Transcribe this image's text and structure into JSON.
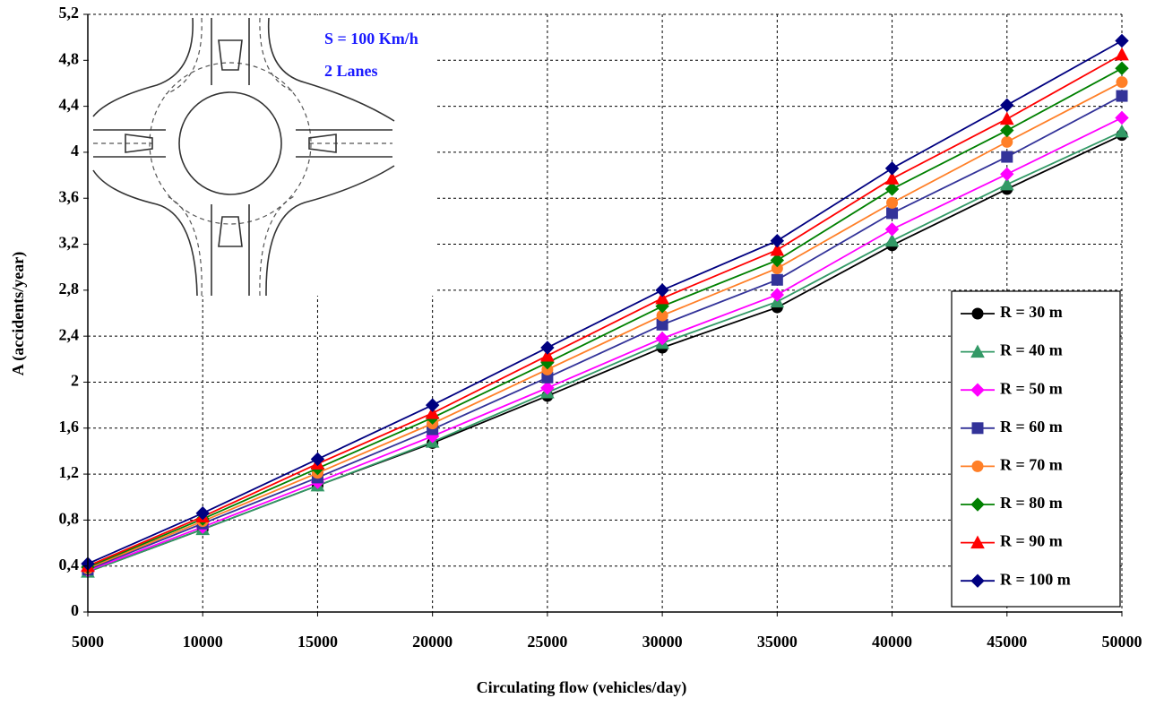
{
  "chart_data": {
    "type": "line",
    "annotations": [
      "S = 100 Km/h",
      "2 Lanes"
    ],
    "xlabel": "Circulating flow (vehicles/day)",
    "ylabel": "A (accidents/year)",
    "x": [
      5000,
      10000,
      15000,
      20000,
      25000,
      30000,
      35000,
      40000,
      45000,
      50000
    ],
    "xlim": [
      5000,
      50000
    ],
    "xticks": [
      5000,
      10000,
      15000,
      20000,
      25000,
      30000,
      35000,
      40000,
      45000,
      50000
    ],
    "ylim": [
      0,
      5.2
    ],
    "yticks": [
      0,
      {
        "value": 0.4,
        "label": "0,4"
      },
      {
        "value": 0.8,
        "label": "0,8"
      },
      {
        "value": 1.2,
        "label": "1,2"
      },
      {
        "value": 1.6,
        "label": "1,6"
      },
      2,
      {
        "value": 2.4,
        "label": "2,4"
      },
      {
        "value": 2.8,
        "label": "2,8"
      },
      {
        "value": 3.2,
        "label": "3,2"
      },
      {
        "value": 3.6,
        "label": "3,6"
      },
      4,
      {
        "value": 4.4,
        "label": "4,4"
      },
      {
        "value": 4.8,
        "label": "4,8"
      },
      {
        "value": 5.2,
        "label": "5,2"
      }
    ],
    "grid": true,
    "legend": "lower right",
    "series": [
      {
        "name": "R = 30 m",
        "color": "#000000",
        "marker": "circle",
        "values": [
          0.35,
          0.72,
          1.1,
          1.47,
          1.88,
          2.3,
          2.65,
          3.19,
          3.68,
          4.15
        ]
      },
      {
        "name": "R = 40 m",
        "color": "#339966",
        "marker": "triangle",
        "values": [
          0.35,
          0.72,
          1.1,
          1.48,
          1.91,
          2.34,
          2.7,
          3.23,
          3.72,
          4.18
        ]
      },
      {
        "name": "R = 50 m",
        "color": "#ff00ff",
        "marker": "diamond",
        "values": [
          0.36,
          0.74,
          1.13,
          1.53,
          1.95,
          2.38,
          2.76,
          3.33,
          3.81,
          4.3
        ]
      },
      {
        "name": "R = 60 m",
        "color": "#333399",
        "marker": "square",
        "values": [
          0.37,
          0.77,
          1.17,
          1.59,
          2.04,
          2.5,
          2.89,
          3.47,
          3.96,
          4.49
        ]
      },
      {
        "name": "R = 70 m",
        "color": "#ff7f27",
        "marker": "circle",
        "values": [
          0.38,
          0.79,
          1.21,
          1.64,
          2.11,
          2.58,
          2.99,
          3.56,
          4.09,
          4.61
        ]
      },
      {
        "name": "R = 80 m",
        "color": "#008000",
        "marker": "diamond",
        "values": [
          0.39,
          0.81,
          1.25,
          1.69,
          2.17,
          2.66,
          3.06,
          3.68,
          4.19,
          4.73
        ]
      },
      {
        "name": "R = 90 m",
        "color": "#ff0000",
        "marker": "triangle",
        "values": [
          0.4,
          0.83,
          1.29,
          1.73,
          2.23,
          2.73,
          3.15,
          3.77,
          4.29,
          4.85
        ]
      },
      {
        "name": "R = 100 m",
        "color": "#000080",
        "marker": "diamond",
        "values": [
          0.42,
          0.86,
          1.33,
          1.8,
          2.3,
          2.8,
          3.23,
          3.86,
          4.41,
          4.97
        ]
      }
    ]
  }
}
